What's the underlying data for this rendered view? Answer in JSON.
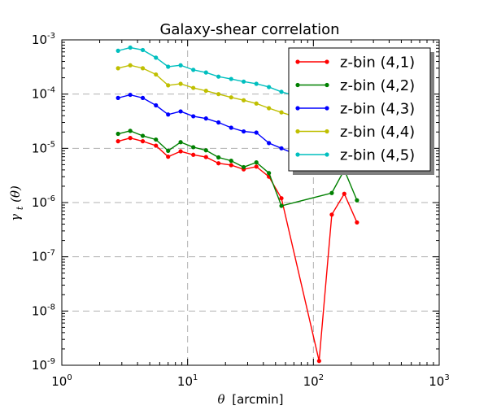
{
  "chart_data": {
    "type": "line",
    "title": "Galaxy-shear correlation",
    "xlabel_symbol": "θ",
    "xlabel_unit": "[arcmin]",
    "ylabel_symbol": "γ",
    "ylabel_sub": "t",
    "ylabel_arg": "(θ)",
    "xscale": "log",
    "yscale": "log",
    "xlim": [
      1,
      1000
    ],
    "ylim": [
      1e-09,
      0.001
    ],
    "xtick_labels": [
      {
        "base": "10",
        "exp": "0",
        "value": 1
      },
      {
        "base": "10",
        "exp": "1",
        "value": 10
      },
      {
        "base": "10",
        "exp": "2",
        "value": 100
      },
      {
        "base": "10",
        "exp": "3",
        "value": 1000
      }
    ],
    "ytick_labels": [
      {
        "base": "10",
        "exp": "-9",
        "value": 1e-09
      },
      {
        "base": "10",
        "exp": "-8",
        "value": 1e-08
      },
      {
        "base": "10",
        "exp": "-7",
        "value": 1e-07
      },
      {
        "base": "10",
        "exp": "-6",
        "value": 1e-06
      },
      {
        "base": "10",
        "exp": "-5",
        "value": 1e-05
      },
      {
        "base": "10",
        "exp": "-4",
        "value": 0.0001
      },
      {
        "base": "10",
        "exp": "-3",
        "value": 0.001
      }
    ],
    "grid": "major, dashed gray",
    "legend_position": "top-right",
    "series": [
      {
        "name": "z-bin (4,1)",
        "color": "#ff0000",
        "x": [
          2.8,
          3.5,
          4.4,
          5.6,
          7.0,
          8.8,
          11.1,
          14.0,
          17.6,
          22.2,
          27.9,
          35.2,
          44.3,
          55.7,
          111,
          140,
          176,
          222
        ],
        "y": [
          1.35e-05,
          1.55e-05,
          1.35e-05,
          1.12e-05,
          7e-06,
          8.8e-06,
          7.6e-06,
          6.9e-06,
          5.3e-06,
          4.9e-06,
          4.1e-06,
          4.6e-06,
          3e-06,
          1.2e-06,
          1.2e-09,
          6e-07,
          1.45e-06,
          4.3e-07
        ]
      },
      {
        "name": "z-bin (4,2)",
        "color": "#008000",
        "x": [
          2.8,
          3.5,
          4.4,
          5.6,
          7.0,
          8.8,
          11.1,
          14.0,
          17.6,
          22.2,
          27.9,
          35.2,
          44.3,
          55.7,
          140,
          176,
          222
        ],
        "y": [
          1.85e-05,
          2.1e-05,
          1.7e-05,
          1.45e-05,
          9e-06,
          1.3e-05,
          1.05e-05,
          9.2e-06,
          6.8e-06,
          5.9e-06,
          4.5e-06,
          5.5e-06,
          3.5e-06,
          8.7e-07,
          1.5e-06,
          4e-06,
          1.1e-06
        ]
      },
      {
        "name": "z-bin (4,3)",
        "color": "#0000ff",
        "x": [
          2.8,
          3.5,
          4.4,
          5.6,
          7.0,
          8.8,
          11.1,
          14.0,
          17.6,
          22.2,
          27.9,
          35.2,
          44.3,
          55.7,
          70.1,
          88.2,
          111
        ],
        "y": [
          8.5e-05,
          9.7e-05,
          8.5e-05,
          6.2e-05,
          4.2e-05,
          4.8e-05,
          3.9e-05,
          3.55e-05,
          3e-05,
          2.4e-05,
          2.05e-05,
          1.95e-05,
          1.25e-05,
          1e-05,
          8e-06,
          6e-06,
          3.7e-06
        ]
      },
      {
        "name": "z-bin (4,4)",
        "color": "#bfbf00",
        "x": [
          2.8,
          3.5,
          4.4,
          5.6,
          7.0,
          8.8,
          11.1,
          14.0,
          17.6,
          22.2,
          27.9,
          35.2,
          44.3,
          55.7,
          70.1,
          88.2
        ],
        "y": [
          0.0003,
          0.00034,
          0.0003,
          0.00023,
          0.000145,
          0.000155,
          0.00013,
          0.000115,
          0.0001,
          8.7e-05,
          7.7e-05,
          6.7e-05,
          5.5e-05,
          4.6e-05,
          3.9e-05,
          3.3e-05
        ]
      },
      {
        "name": "z-bin (4,5)",
        "color": "#00bfbf",
        "x": [
          2.8,
          3.5,
          4.4,
          5.6,
          7.0,
          8.8,
          11.1,
          14.0,
          17.6,
          22.2,
          27.9,
          35.2,
          44.3,
          55.7,
          70.1,
          88.2
        ],
        "y": [
          0.00063,
          0.00072,
          0.00065,
          0.00047,
          0.00032,
          0.00034,
          0.00028,
          0.00025,
          0.00021,
          0.00019,
          0.00017,
          0.000155,
          0.000135,
          0.00011,
          9.5e-05,
          8e-05
        ]
      }
    ]
  }
}
